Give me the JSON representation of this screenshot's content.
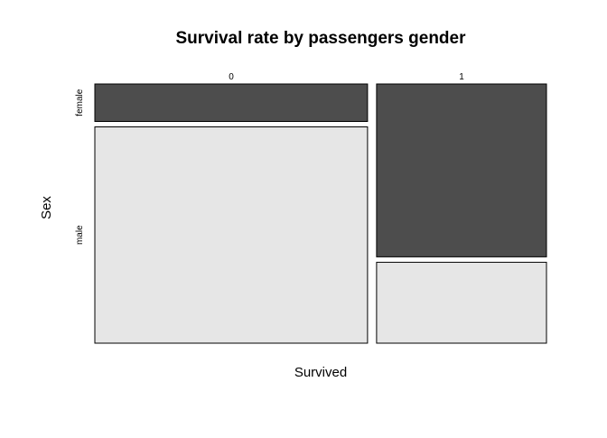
{
  "chart_data": {
    "type": "mosaic",
    "title": "Survival rate by passengers gender",
    "xlabel": "Survived",
    "ylabel": "Sex",
    "x_categories": [
      "0",
      "1"
    ],
    "y_categories": [
      "female",
      "male"
    ],
    "counts": [
      {
        "survived": "0",
        "female": 81,
        "male": 468
      },
      {
        "survived": "1",
        "female": 233,
        "male": 109
      }
    ],
    "colors": {
      "female": "#4d4d4d",
      "male": "#e6e6e6",
      "border": "#000000"
    }
  }
}
